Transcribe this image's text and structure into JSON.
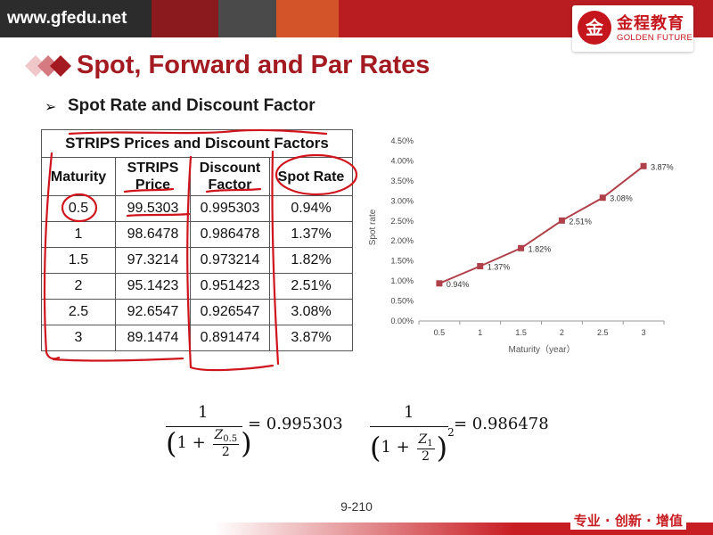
{
  "header": {
    "site": "www.gfedu.net",
    "logo_seal": "金",
    "logo_cn": "金程教育",
    "logo_en": "GOLDEN FUTURE"
  },
  "slide": {
    "title": "Spot, Forward and Par Rates",
    "bullet": "➢",
    "subtitle": "Spot Rate and Discount Factor",
    "page": "9-210",
    "slogan": "专业 · 创新 · 增值"
  },
  "table": {
    "caption": "STRIPS Prices and Discount Factors",
    "headers": [
      [
        "Maturity"
      ],
      [
        "STRIPS",
        "Price"
      ],
      [
        "Discount",
        "Factor"
      ],
      [
        "Spot Rate"
      ]
    ],
    "rows": [
      [
        "0.5",
        "99.5303",
        "0.995303",
        "0.94%"
      ],
      [
        "1",
        "98.6478",
        "0.986478",
        "1.37%"
      ],
      [
        "1.5",
        "97.3214",
        "0.973214",
        "1.82%"
      ],
      [
        "2",
        "95.1423",
        "0.951423",
        "2.51%"
      ],
      [
        "2.5",
        "92.6547",
        "0.926547",
        "3.08%"
      ],
      [
        "3",
        "89.1474",
        "0.891474",
        "3.87%"
      ]
    ]
  },
  "chart_data": {
    "type": "line",
    "x": [
      "0.5",
      "1",
      "1.5",
      "2",
      "2.5",
      "3"
    ],
    "series": [
      {
        "values": [
          0.94,
          1.37,
          1.82,
          2.51,
          3.08,
          3.87
        ],
        "labels": [
          "0.94%",
          "1.37%",
          "1.82%",
          "2.51%",
          "3.08%",
          "3.87%"
        ]
      }
    ],
    "yticks": [
      "0.00%",
      "0.50%",
      "1.00%",
      "1.50%",
      "2.00%",
      "2.50%",
      "3.00%",
      "3.50%",
      "4.00%",
      "4.50%"
    ],
    "ylim": [
      0,
      4.5
    ],
    "xlabel": "Maturity（year）",
    "ylabel": "Spot rate",
    "grid": false,
    "line_color": "#b0404a"
  },
  "formulas": {
    "f1": {
      "num": "1",
      "one": "1",
      "plus": "+",
      "z": "Z",
      "zsub": "0.5",
      "two": "2",
      "rhs": "= 0.995303"
    },
    "f2": {
      "num": "1",
      "one": "1",
      "plus": "+",
      "z": "Z",
      "zsub": "1",
      "two": "2",
      "sup": "2",
      "rhs": "= 0.986478"
    }
  }
}
